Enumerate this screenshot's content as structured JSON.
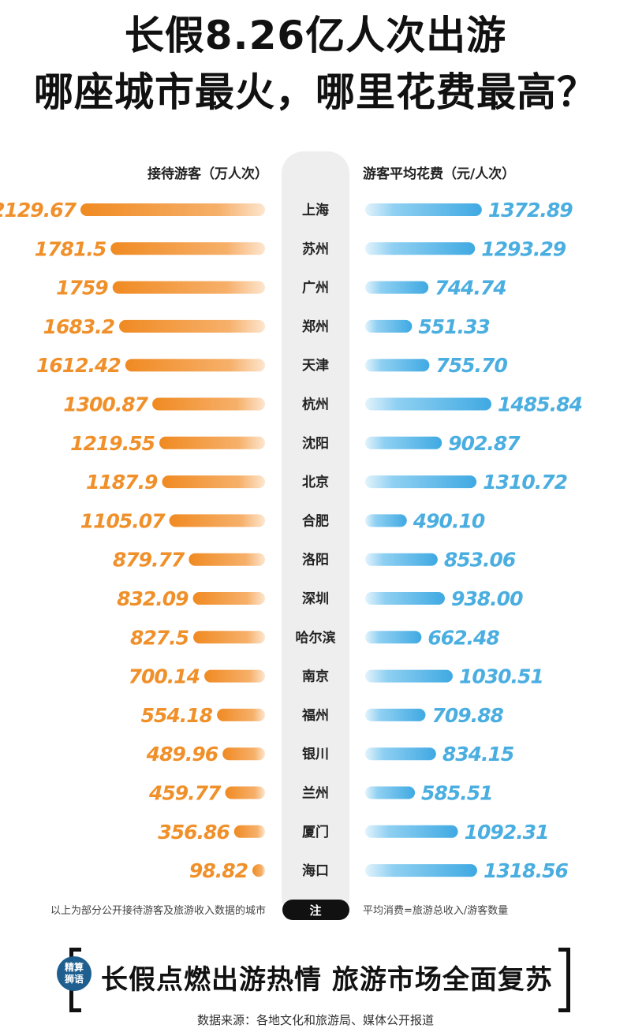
{
  "title_line1": "长假8.26亿人次出游",
  "title_line2": "哪座城市最火，哪里花费最高？",
  "chart_data": {
    "type": "bar",
    "left_header": "接待游客（万人次）",
    "right_header": "游客平均花费（元/人次）",
    "categories": [
      "上海",
      "苏州",
      "广州",
      "郑州",
      "天津",
      "杭州",
      "沈阳",
      "北京",
      "合肥",
      "洛阳",
      "深圳",
      "哈尔滨",
      "南京",
      "福州",
      "银川",
      "兰州",
      "厦门",
      "海口"
    ],
    "series": [
      {
        "name": "接待游客（万人次）",
        "color": "#f39a3a",
        "values": [
          2129.67,
          1781.5,
          1759,
          1683.2,
          1612.42,
          1300.87,
          1219.55,
          1187.9,
          1105.07,
          879.77,
          832.09,
          827.5,
          700.14,
          554.18,
          489.96,
          459.77,
          356.86,
          98.82
        ],
        "labels": [
          "2129.67",
          "1781.5",
          "1759",
          "1683.2",
          "1612.42",
          "1300.87",
          "1219.55",
          "1187.9",
          "1105.07",
          "879.77",
          "832.09",
          "827.5",
          "700.14",
          "554.18",
          "489.96",
          "459.77",
          "356.86",
          "98.82"
        ]
      },
      {
        "name": "游客平均花费（元/人次）",
        "color": "#4fb3e6",
        "values": [
          1372.89,
          1293.29,
          744.74,
          551.33,
          755.7,
          1485.84,
          902.87,
          1310.72,
          490.1,
          853.06,
          938.0,
          662.48,
          1030.51,
          709.88,
          834.15,
          585.51,
          1092.31,
          1318.56
        ],
        "labels": [
          "1372.89",
          "1293.29",
          "744.74",
          "551.33",
          "755.70",
          "1485.84",
          "902.87",
          "1310.72",
          "490.10",
          "853.06",
          "938.00",
          "662.48",
          "1030.51",
          "709.88",
          "834.15",
          "585.51",
          "1092.31",
          "1318.56"
        ]
      }
    ]
  },
  "note_left": "以上为部分公开接待游客及旅游收入数据的城市",
  "note_key": "注",
  "note_right": "平均消费=旅游总收入/游客数量",
  "logo_line1": "精算",
  "logo_line2": "狮语",
  "slogan": "长假点燃出游热情  旅游市场全面复苏",
  "source": "数据来源：各地文化和旅游局、媒体公开报道"
}
